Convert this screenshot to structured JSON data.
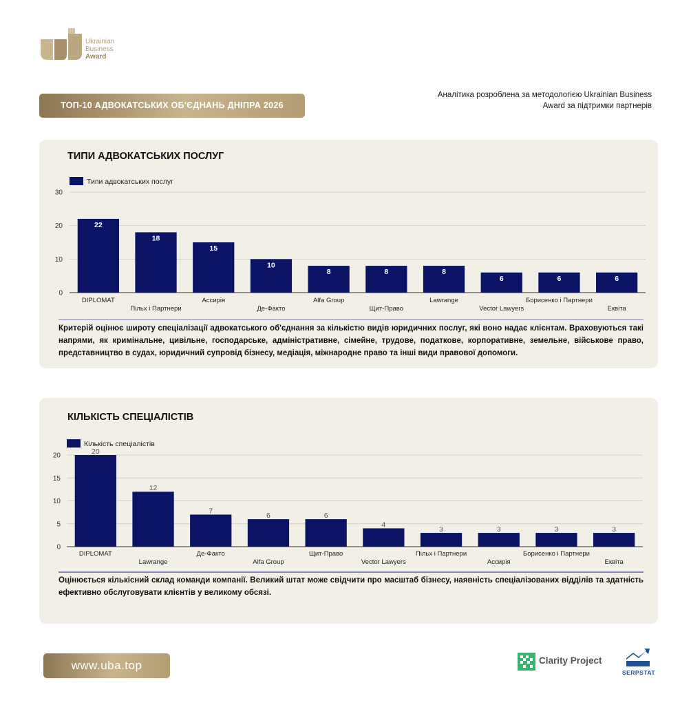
{
  "brand": {
    "logo_lines": [
      "Ukrainian",
      "Business",
      "Award"
    ],
    "gold": "#b8a57f"
  },
  "header": {
    "title": "ТОП-10 АДВОКАТСЬКИХ ОБ'ЄДНАНЬ ДНІПРА 2026",
    "note": "Аналітика розроблена за методологією Ukrainian Business Award за підтримки партнерів"
  },
  "chart_data": [
    {
      "type": "bar",
      "title": "ТИПИ АДВОКАТСЬКИХ ПОСЛУГ",
      "legend_position": "top-left",
      "grid": true,
      "ylim": [
        0,
        30
      ],
      "yticks": [
        0,
        10,
        20,
        30
      ],
      "categories": [
        "DIPLOMAT",
        "Пільх і Партнери",
        "Ассирія",
        "Де-Факто",
        "Alfa Group",
        "Щит-Право",
        "Lawrange",
        "Vector Lawyers",
        "Борисенко і Партнери",
        "Еквіта"
      ],
      "series": [
        {
          "name": "Типи адвокатських послуг",
          "color": "#0b1464",
          "values": [
            22,
            18,
            15,
            10,
            8,
            8,
            8,
            6,
            6,
            6
          ]
        }
      ],
      "label_color": "#ffffff",
      "description": "Критерій оцінює широту спеціалізації адвокатського об'єднання за кількістю видів юридичних послуг, які воно надає клієнтам. Враховуються такі напрями, як кримінальне, цивільне, господарське, адміністративне, сімейне, трудове, податкове, корпоративне, земельне, військове право, представництво в судах, юридичний супровід бізнесу, медіація, міжнародне право та інші види правової допомоги."
    },
    {
      "type": "bar",
      "title": "КІЛЬКІСТЬ СПЕЦІАЛІСТІВ",
      "legend_position": "top-left",
      "grid": true,
      "ylim": [
        0,
        20
      ],
      "yticks": [
        0,
        5,
        10,
        15,
        20
      ],
      "categories": [
        "DIPLOMAT",
        "Lawrange",
        "Де-Факто",
        "Alfa Group",
        "Щит-Право",
        "Vector Lawyers",
        "Пільх і Партнери",
        "Ассирія",
        "Борисенко і Партнери",
        "Еквіта"
      ],
      "series": [
        {
          "name": "Кількість спеціалістів",
          "color": "#0b1464",
          "values": [
            20,
            12,
            7,
            6,
            6,
            4,
            3,
            3,
            3,
            3
          ]
        }
      ],
      "label_color": "#555555",
      "description": "Оцінюється кількісний склад команди компанії. Великий штат може свідчити про масштаб бізнесу, наявність спеціалізованих відділів та здатність ефективно обслуговувати клієнтів у великому обсязі."
    }
  ],
  "footer": {
    "url": "www.uba.top",
    "partners": [
      "Clarity Project",
      "SERPSTAT"
    ]
  }
}
